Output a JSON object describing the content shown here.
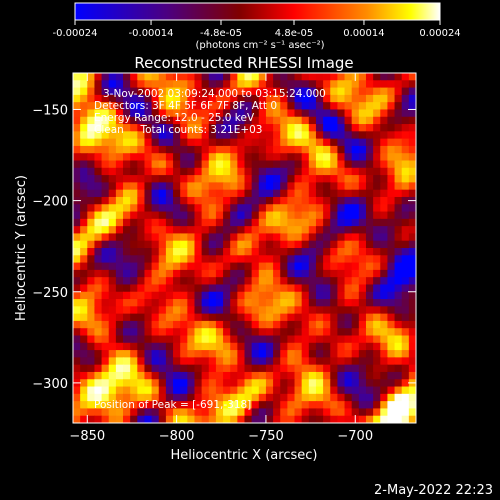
{
  "chart_data": {
    "type": "heatmap",
    "title": "Reconstructed RHESSI Image",
    "xlabel": "Heliocentric X (arcsec)",
    "ylabel": "Heliocentric Y (arcsec)",
    "xlim": [
      -858,
      -666
    ],
    "ylim": [
      -322,
      -130
    ],
    "x_ticks": [
      -850,
      -800,
      -750,
      -700
    ],
    "y_ticks": [
      -150,
      -200,
      -250,
      -300
    ],
    "colorbar": {
      "range": [
        -0.00024,
        0.00024
      ],
      "tick_values": [
        -0.00024,
        -0.00014,
        -4.8e-05,
        4.8e-05,
        0.00014,
        0.00024
      ],
      "tick_labels": [
        "-0.00024",
        "-0.00014",
        "-4.8e-05",
        "4.8e-05",
        "0.00014",
        "0.00024"
      ],
      "label": "(photons cm⁻² s⁻¹ asec⁻²)",
      "colors": [
        "#0000ff",
        "#4b0082",
        "#800000",
        "#ff0000",
        "#ff8c00",
        "#ffff00",
        "#ffffff"
      ]
    },
    "annotations": [
      "3-Nov-2002 03:09:24.000 to 03:15:24.000",
      "Detectors: 3F 4F 5F 6F 7F 8F, Att 0",
      "Energy Range: 12.0 - 25.0 keV",
      "Clean     Total counts: 3.21E+03"
    ],
    "peak_annotation": "Position of Peak = [-691,-318]"
  },
  "footer": {
    "timestamp": "2-May-2022 22:23"
  }
}
